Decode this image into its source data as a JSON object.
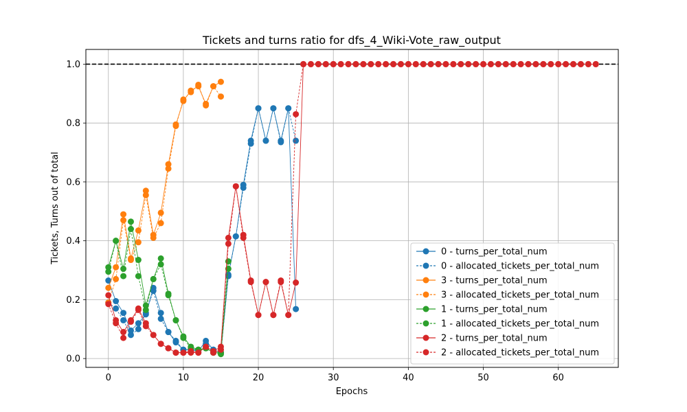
{
  "chart_data": {
    "type": "line",
    "title": "Tickets and turns ratio for dfs_4_Wiki-Vote_raw_output",
    "xlabel": "Epochs",
    "ylabel": "Tickets, Turns out of total",
    "xlim": [
      -3,
      68
    ],
    "ylim": [
      -0.03,
      1.05
    ],
    "xticks": [
      0,
      10,
      20,
      30,
      40,
      50,
      60
    ],
    "yticks": [
      0.0,
      0.2,
      0.4,
      0.6,
      0.8,
      1.0
    ],
    "ytick_labels": [
      "0.0",
      "0.2",
      "0.4",
      "0.6",
      "0.8",
      "1.0"
    ],
    "grid": true,
    "legend_position": "lower-right",
    "reference_line": {
      "y": 1.0,
      "style": "dashed",
      "color": "#000000"
    },
    "series": [
      {
        "name": "0 - turns_per_total_num",
        "color": "#1f77b4",
        "style": "solid",
        "x": [
          0,
          1,
          2,
          3,
          4,
          5,
          6,
          7,
          8,
          9,
          10,
          11,
          12,
          13,
          14,
          15,
          16,
          17,
          18,
          19,
          20,
          21,
          22,
          23,
          24,
          25
        ],
        "y": [
          0.265,
          0.195,
          0.155,
          0.095,
          0.12,
          0.15,
          0.24,
          0.155,
          0.09,
          0.055,
          0.03,
          0.03,
          0.025,
          0.06,
          0.03,
          0.02,
          0.285,
          0.415,
          0.59,
          0.74,
          0.85,
          0.74,
          0.85,
          0.74,
          0.85,
          0.168
        ]
      },
      {
        "name": "0 - allocated_tickets_per_total_num",
        "color": "#1f77b4",
        "style": "dashed",
        "x": [
          0,
          1,
          2,
          3,
          4,
          5,
          6,
          7,
          8,
          9,
          10,
          11,
          12,
          13,
          14,
          15,
          16,
          17,
          18,
          19,
          20,
          21,
          22,
          23,
          24,
          25
        ],
        "y": [
          0.19,
          0.17,
          0.13,
          0.08,
          0.1,
          0.155,
          0.23,
          0.135,
          0.09,
          0.06,
          0.03,
          0.03,
          0.03,
          0.05,
          0.03,
          0.02,
          0.28,
          0.415,
          0.58,
          0.73,
          0.85,
          0.74,
          0.85,
          0.735,
          0.85,
          0.74
        ]
      },
      {
        "name": "3 - turns_per_total_num",
        "color": "#ff7f0e",
        "style": "solid",
        "x": [
          0,
          1,
          2,
          3,
          4,
          5,
          6,
          7,
          8,
          9,
          10,
          11,
          12,
          13,
          14,
          15
        ],
        "y": [
          0.24,
          0.31,
          0.49,
          0.34,
          0.435,
          0.57,
          0.42,
          0.495,
          0.66,
          0.795,
          0.875,
          0.91,
          0.925,
          0.865,
          0.925,
          0.94
        ]
      },
      {
        "name": "3 - allocated_tickets_per_total_num",
        "color": "#ff7f0e",
        "style": "dashed",
        "x": [
          0,
          1,
          2,
          3,
          4,
          5,
          6,
          7,
          8,
          9,
          10,
          11,
          12,
          13,
          14,
          15
        ],
        "y": [
          0.19,
          0.27,
          0.47,
          0.335,
          0.395,
          0.555,
          0.41,
          0.46,
          0.645,
          0.79,
          0.88,
          0.905,
          0.93,
          0.86,
          0.925,
          0.89
        ]
      },
      {
        "name": "1 - turns_per_total_num",
        "color": "#2ca02c",
        "style": "solid",
        "x": [
          0,
          1,
          2,
          3,
          4,
          5,
          6,
          7,
          8,
          9,
          10,
          11,
          12,
          13,
          14,
          15,
          16
        ],
        "y": [
          0.31,
          0.4,
          0.305,
          0.465,
          0.335,
          0.18,
          0.27,
          0.34,
          0.22,
          0.13,
          0.075,
          0.04,
          0.03,
          0.035,
          0.02,
          0.02,
          0.33
        ]
      },
      {
        "name": "1 - allocated_tickets_per_total_num",
        "color": "#2ca02c",
        "style": "dashed",
        "x": [
          0,
          1,
          2,
          3,
          4,
          5,
          6,
          7,
          8,
          9,
          10,
          11,
          12,
          13,
          14,
          15,
          16
        ],
        "y": [
          0.295,
          0.4,
          0.28,
          0.44,
          0.28,
          0.165,
          0.27,
          0.32,
          0.215,
          0.13,
          0.07,
          0.035,
          0.03,
          0.035,
          0.02,
          0.015,
          0.305
        ]
      },
      {
        "name": "2 - turns_per_total_num",
        "color": "#d62728",
        "style": "solid",
        "x": [
          0,
          1,
          2,
          3,
          4,
          5,
          6,
          7,
          8,
          9,
          10,
          11,
          12,
          13,
          14,
          15,
          16,
          17,
          18,
          19,
          20,
          21,
          22,
          23,
          24,
          25,
          26,
          27,
          28,
          29,
          30,
          31,
          32,
          33,
          34,
          35,
          36,
          37,
          38,
          39,
          40,
          41,
          42,
          43,
          44,
          45,
          46,
          47,
          48,
          49,
          50,
          51,
          52,
          53,
          54,
          55,
          56,
          57,
          58,
          59,
          60,
          61,
          62,
          63,
          64,
          65
        ],
        "y": [
          0.215,
          0.13,
          0.09,
          0.13,
          0.17,
          0.12,
          0.08,
          0.05,
          0.035,
          0.02,
          0.02,
          0.025,
          0.02,
          0.04,
          0.025,
          0.04,
          0.41,
          0.585,
          0.42,
          0.265,
          0.148,
          0.26,
          0.148,
          0.26,
          0.148,
          0.258,
          1.0,
          1.0,
          1.0,
          1.0,
          1.0,
          1.0,
          1.0,
          1.0,
          1.0,
          1.0,
          1.0,
          1.0,
          1.0,
          1.0,
          1.0,
          1.0,
          1.0,
          1.0,
          1.0,
          1.0,
          1.0,
          1.0,
          1.0,
          1.0,
          1.0,
          1.0,
          1.0,
          1.0,
          1.0,
          1.0,
          1.0,
          1.0,
          1.0,
          1.0,
          1.0,
          1.0,
          1.0,
          1.0,
          1.0,
          1.0
        ]
      },
      {
        "name": "2 - allocated_tickets_per_total_num",
        "color": "#d62728",
        "style": "dashed",
        "x": [
          0,
          1,
          2,
          3,
          4,
          5,
          6,
          7,
          8,
          9,
          10,
          11,
          12,
          13,
          14,
          15,
          16,
          17,
          18,
          19,
          20,
          21,
          22,
          23,
          24,
          25,
          26,
          27,
          28,
          29,
          30,
          31,
          32,
          33,
          34,
          35,
          36,
          37,
          38,
          39,
          40,
          41,
          42,
          43,
          44,
          45,
          46,
          47,
          48,
          49,
          50,
          51,
          52,
          53,
          54,
          55,
          56,
          57,
          58,
          59,
          60,
          61,
          62,
          63,
          64,
          65
        ],
        "y": [
          0.185,
          0.12,
          0.07,
          0.125,
          0.165,
          0.11,
          0.08,
          0.05,
          0.035,
          0.02,
          0.02,
          0.02,
          0.02,
          0.04,
          0.02,
          0.03,
          0.39,
          0.585,
          0.41,
          0.26,
          0.148,
          0.26,
          0.148,
          0.265,
          0.148,
          0.83,
          1.0,
          1.0,
          1.0,
          1.0,
          1.0,
          1.0,
          1.0,
          1.0,
          1.0,
          1.0,
          1.0,
          1.0,
          1.0,
          1.0,
          1.0,
          1.0,
          1.0,
          1.0,
          1.0,
          1.0,
          1.0,
          1.0,
          1.0,
          1.0,
          1.0,
          1.0,
          1.0,
          1.0,
          1.0,
          1.0,
          1.0,
          1.0,
          1.0,
          1.0,
          1.0,
          1.0,
          1.0,
          1.0,
          1.0,
          1.0
        ]
      }
    ]
  }
}
